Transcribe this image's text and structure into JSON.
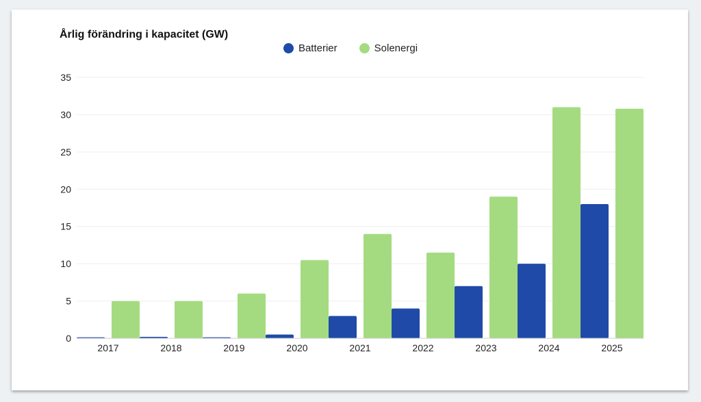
{
  "chart_data": {
    "type": "bar",
    "title": "Årlig förändring i kapacitet (GW)",
    "categories": [
      "2017",
      "2018",
      "2019",
      "2020",
      "2021",
      "2022",
      "2023",
      "2024",
      "2025"
    ],
    "series": [
      {
        "name": "Batterier",
        "color": "#1f4aa8",
        "values": [
          0.1,
          0.2,
          0.1,
          0.5,
          3,
          4,
          7,
          10,
          18
        ]
      },
      {
        "name": "Solenergi",
        "color": "#a4db80",
        "values": [
          5,
          5,
          6,
          10.5,
          14,
          11.5,
          19,
          31,
          30.8
        ]
      }
    ],
    "ylim": [
      0,
      35
    ],
    "yticks": [
      "0",
      "5",
      "10",
      "15",
      "20",
      "25",
      "30",
      "35"
    ],
    "grid": true,
    "legend_position": "top-center"
  }
}
